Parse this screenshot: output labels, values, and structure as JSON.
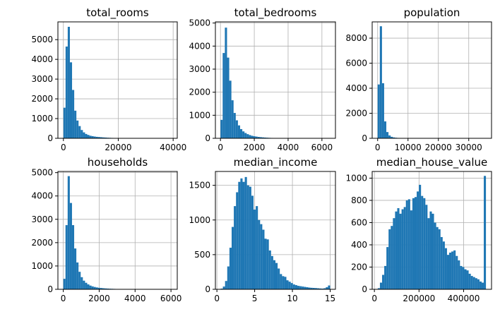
{
  "chart_data": [
    {
      "type": "bar",
      "title": "total_rooms",
      "xlabel": "",
      "ylabel": "",
      "grid": true,
      "xlim": [
        -2000,
        41500
      ],
      "ylim": [
        0,
        5900
      ],
      "xticks": [
        0,
        20000,
        40000
      ],
      "yticks": [
        0,
        1000,
        2000,
        3000,
        4000,
        5000
      ],
      "bin_width": 789,
      "bin_start": 0,
      "values": [
        1550,
        4650,
        5650,
        3850,
        2450,
        1400,
        900,
        620,
        420,
        300,
        220,
        170,
        130,
        110,
        90,
        75,
        65,
        55,
        45,
        38,
        30,
        25,
        20,
        15,
        12,
        10,
        8,
        6,
        5,
        4,
        3,
        3,
        2,
        2,
        1,
        1,
        1,
        1,
        1,
        1,
        1,
        1,
        1,
        1,
        1,
        1,
        1,
        1,
        1,
        1
      ]
    },
    {
      "type": "bar",
      "title": "total_bedrooms",
      "xlabel": "",
      "ylabel": "",
      "grid": true,
      "xlim": [
        -300,
        6800
      ],
      "ylim": [
        0,
        5050
      ],
      "xticks": [
        0,
        2000,
        4000,
        6000
      ],
      "yticks": [
        0,
        1000,
        2000,
        3000,
        4000,
        5000
      ],
      "bin_width": 129,
      "bin_start": 1,
      "values": [
        800,
        3700,
        4800,
        3500,
        2500,
        1650,
        1100,
        780,
        560,
        400,
        300,
        230,
        180,
        140,
        110,
        90,
        75,
        60,
        50,
        40,
        32,
        26,
        20,
        16,
        12,
        10,
        8,
        6,
        5,
        4,
        3,
        3,
        2,
        2,
        1,
        1,
        1,
        1,
        1,
        1,
        1,
        1,
        1,
        1,
        1,
        1,
        1,
        1,
        1,
        1
      ]
    },
    {
      "type": "bar",
      "title": "population",
      "xlabel": "",
      "ylabel": "",
      "grid": true,
      "xlim": [
        -1800,
        37500
      ],
      "ylim": [
        0,
        9300
      ],
      "xticks": [
        0,
        10000,
        20000,
        30000
      ],
      "yticks": [
        0,
        2000,
        4000,
        6000,
        8000
      ],
      "bin_width": 713,
      "bin_start": 3,
      "values": [
        4300,
        8950,
        4400,
        1350,
        500,
        230,
        120,
        70,
        45,
        30,
        20,
        15,
        10,
        8,
        6,
        5,
        4,
        3,
        3,
        2,
        2,
        1,
        1,
        1,
        1,
        1,
        1,
        1,
        1,
        1,
        1,
        1,
        1,
        1,
        1,
        1,
        1,
        1,
        1,
        1,
        1,
        1,
        1,
        1,
        1,
        1,
        1,
        1,
        1,
        1
      ]
    },
    {
      "type": "bar",
      "title": "households",
      "xlabel": "",
      "ylabel": "",
      "grid": true,
      "xlim": [
        -300,
        6350
      ],
      "ylim": [
        0,
        5050
      ],
      "xticks": [
        0,
        2000,
        4000,
        6000
      ],
      "yticks": [
        0,
        1000,
        2000,
        3000,
        4000,
        5000
      ],
      "bin_width": 121,
      "bin_start": 1,
      "values": [
        450,
        2750,
        4850,
        3700,
        2750,
        1750,
        1150,
        750,
        520,
        370,
        280,
        210,
        160,
        125,
        100,
        80,
        65,
        55,
        45,
        38,
        32,
        26,
        22,
        18,
        15,
        12,
        10,
        8,
        6,
        5,
        4,
        3,
        3,
        2,
        2,
        1,
        1,
        1,
        1,
        1,
        1,
        1,
        1,
        1,
        1,
        1,
        1,
        1,
        1,
        1
      ]
    },
    {
      "type": "bar",
      "title": "median_income",
      "xlabel": "",
      "ylabel": "",
      "grid": true,
      "xlim": [
        -0.2,
        15.7
      ],
      "ylim": [
        0,
        1700
      ],
      "xticks": [
        0,
        5,
        10,
        15
      ],
      "yticks": [
        0,
        500,
        1000,
        1500
      ],
      "bin_width": 0.29,
      "bin_start": 0.5,
      "values": [
        10,
        40,
        120,
        330,
        600,
        900,
        1200,
        1400,
        1550,
        1600,
        1550,
        1620,
        1500,
        1480,
        1350,
        1150,
        1200,
        1000,
        940,
        860,
        730,
        720,
        560,
        480,
        420,
        380,
        300,
        220,
        190,
        180,
        130,
        110,
        90,
        70,
        60,
        50,
        45,
        40,
        35,
        30,
        25,
        22,
        20,
        18,
        15,
        12,
        10,
        15,
        30,
        55
      ]
    },
    {
      "type": "bar",
      "title": "median_house_value",
      "xlabel": "",
      "ylabel": "",
      "grid": true,
      "xlim": [
        -10000,
        525000
      ],
      "ylim": [
        0,
        1060
      ],
      "xticks": [
        0,
        200000,
        400000
      ],
      "yticks": [
        0,
        200,
        400,
        600,
        800,
        1000
      ],
      "bin_width": 9700,
      "bin_start": 15000,
      "values": [
        10,
        60,
        130,
        210,
        380,
        540,
        570,
        640,
        700,
        730,
        680,
        720,
        740,
        800,
        810,
        710,
        820,
        830,
        880,
        940,
        840,
        820,
        760,
        640,
        700,
        680,
        600,
        560,
        540,
        470,
        430,
        370,
        310,
        330,
        340,
        350,
        300,
        260,
        210,
        200,
        180,
        170,
        140,
        120,
        110,
        100,
        90,
        70,
        60,
        1020
      ]
    }
  ]
}
